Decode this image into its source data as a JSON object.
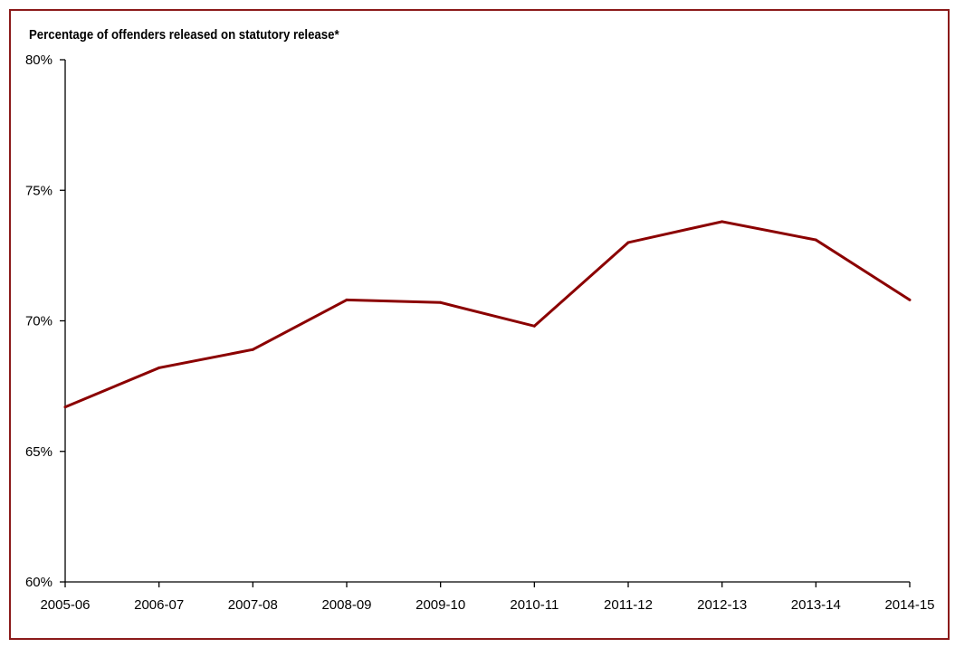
{
  "chart_data": {
    "type": "line",
    "title": "Percentage of offenders released on statutory release*",
    "xlabel": "",
    "ylabel": "",
    "categories": [
      "2005-06",
      "2006-07",
      "2007-08",
      "2008-09",
      "2009-10",
      "2010-11",
      "2011-12",
      "2012-13",
      "2013-14",
      "2014-15"
    ],
    "series": [
      {
        "name": "Statutory release",
        "values": [
          66.7,
          68.2,
          68.9,
          70.8,
          70.7,
          69.8,
          73.0,
          73.8,
          73.1,
          70.8
        ],
        "color": "#8b0000"
      }
    ],
    "ylim": [
      60,
      80
    ],
    "yticks": [
      60,
      65,
      70,
      75,
      80
    ],
    "ytick_labels": [
      "60%",
      "65%",
      "70%",
      "75%",
      "80%"
    ],
    "grid": false,
    "legend": "none"
  }
}
